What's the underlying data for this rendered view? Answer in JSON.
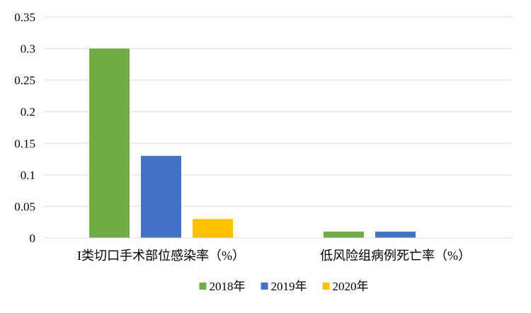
{
  "chart_data": {
    "type": "bar",
    "categories": [
      "I类切口手术部位感染率（%）",
      "低风险组病例死亡率（%）"
    ],
    "series": [
      {
        "name": "2018年",
        "values": [
          0.3,
          0.01
        ],
        "color": "#70AD47"
      },
      {
        "name": "2019年",
        "values": [
          0.13,
          0.01
        ],
        "color": "#4472C4"
      },
      {
        "name": "2020年",
        "values": [
          0.03,
          0.0
        ],
        "color": "#FFC000"
      }
    ],
    "y_ticks": [
      "0",
      "0.05",
      "0.1",
      "0.15",
      "0.2",
      "0.25",
      "0.3",
      "0.35"
    ],
    "ylim": [
      0,
      0.35
    ],
    "grid": true,
    "legend_position": "bottom",
    "gridline_color": "#D9D9D9"
  }
}
